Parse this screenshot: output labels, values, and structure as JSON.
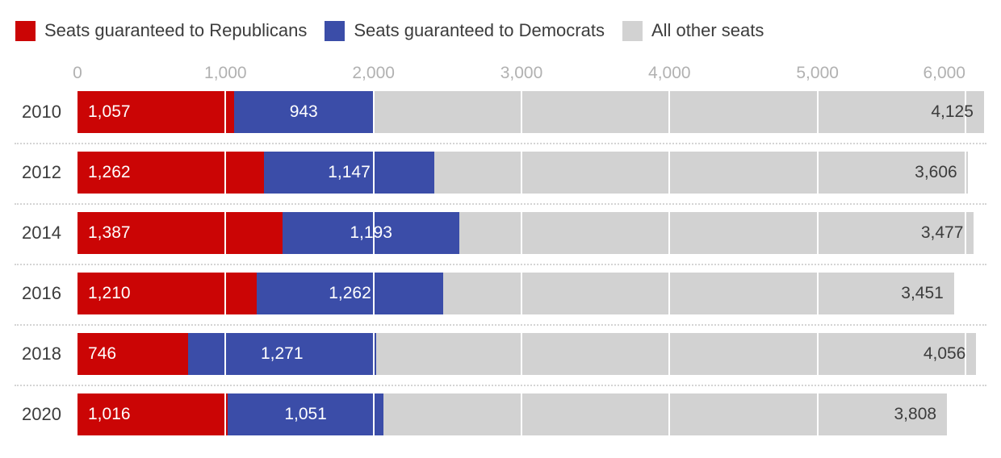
{
  "legend": {
    "items": [
      {
        "icon": "republican-swatch-icon",
        "label": "Seats guaranteed to Republicans",
        "color": "#cb0505"
      },
      {
        "icon": "democrat-swatch-icon",
        "label": "Seats guaranteed to Democrats",
        "color": "#3b4da8"
      },
      {
        "icon": "other-swatch-icon",
        "label": "All other seats",
        "color": "#d2d2d2"
      }
    ]
  },
  "chart_data": {
    "type": "bar",
    "stacked": true,
    "orientation": "horizontal",
    "title": "",
    "xlabel": "",
    "ylabel": "",
    "xlim": [
      0,
      6000
    ],
    "grid": true,
    "gridline_color": "#ffffff",
    "legend_position": "top",
    "categories": [
      "2010",
      "2012",
      "2014",
      "2016",
      "2018",
      "2020"
    ],
    "series": [
      {
        "name": "Seats guaranteed to Republicans",
        "color": "#cb0505",
        "text_color": "#ffffff",
        "label_align": "left",
        "values": [
          1057,
          1262,
          1387,
          1210,
          746,
          1016
        ],
        "labels": [
          "1,057",
          "1,262",
          "1,387",
          "1,210",
          "746",
          "1,016"
        ]
      },
      {
        "name": "Seats guaranteed to Democrats",
        "color": "#3b4da8",
        "text_color": "#ffffff",
        "label_align": "center",
        "values": [
          943,
          1147,
          1193,
          1262,
          1271,
          1051
        ],
        "labels": [
          "943",
          "1,147",
          "1,193",
          "1,262",
          "1,271",
          "1,051"
        ]
      },
      {
        "name": "All other seats",
        "color": "#d2d2d2",
        "text_color": "#3c3c3c",
        "label_align": "right",
        "values": [
          4125,
          3606,
          3477,
          3451,
          4056,
          3808
        ],
        "labels": [
          "4,125",
          "3,606",
          "3,477",
          "3,451",
          "4,056",
          "3,808"
        ]
      }
    ],
    "x_axis": {
      "ticks": [
        {
          "value": 0,
          "label": "0"
        },
        {
          "value": 1000,
          "label": "1,000"
        },
        {
          "value": 2000,
          "label": "2,000"
        },
        {
          "value": 3000,
          "label": "3,000"
        },
        {
          "value": 4000,
          "label": "4,000"
        },
        {
          "value": 5000,
          "label": "5,000"
        },
        {
          "value": 6000,
          "label": "6,000"
        }
      ],
      "tick_color": "#b1b1b1"
    }
  },
  "colors": {
    "background": "#ffffff",
    "year_label": "#3c3c3c",
    "separator": "#d4d4d4"
  }
}
